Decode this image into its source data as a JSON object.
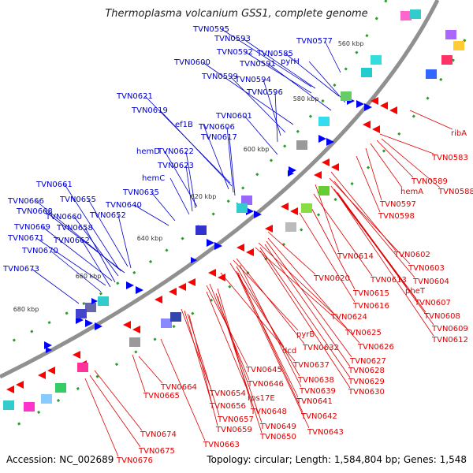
{
  "title": "Thermoplasma volcanium GSS1, complete genome",
  "accession": "Accession: NC_002689",
  "summary": "Topology: circular; Length: 1,584,804 bp; Genes: 1,548",
  "colors": {
    "forward_label": "#0000cc",
    "reverse_label": "#dd0000",
    "forward_arrow": "#0000ff",
    "reverse_arrow": "#ff0000",
    "backbone": "#888888",
    "tick": "#2a9d2a"
  },
  "scale_labels": [
    "560 kbp",
    "580 kbp",
    "600 kbp",
    "620 kbp",
    "640 kbp",
    "660 kbp",
    "680 kbp"
  ],
  "forward_genes": [
    "TVN0595",
    "TVN0593",
    "TVN0577",
    "TVN0592",
    "TVN0585",
    "pyrH",
    "TVN0591",
    "TVN0600",
    "TVN0599",
    "TVN0594",
    "TVN0596",
    "TVN0621",
    "TVN0619",
    "TVN0601",
    "ef1B",
    "TVN0606",
    "TVN0617",
    "hemD",
    "TVN0622",
    "TVN0623",
    "hemC",
    "TVN0635",
    "TVN0640",
    "TVN0661",
    "TVN0666",
    "TVN0655",
    "TVN0668",
    "TVN0660",
    "TVN0652",
    "TVN0669",
    "TVN0658",
    "TVN0671",
    "TVN0662",
    "TVN0670",
    "TVN0673"
  ],
  "reverse_genes": [
    "ribA",
    "TVN0583",
    "TVN0589",
    "hemA",
    "TVN0588",
    "TVN0597",
    "TVN0598",
    "TVN0602",
    "TVN0614",
    "TVN0603",
    "TVN0620",
    "TVN0613",
    "TVN0604",
    "TVN0615",
    "pheT",
    "TVN0616",
    "TVN0607",
    "TVN0608",
    "TVN0624",
    "TVN0609",
    "TVN0625",
    "TVN0612",
    "pyrB",
    "dcd",
    "TVN0632",
    "TVN0626",
    "TVN0627",
    "TVN0637",
    "TVN0628",
    "TVN0645",
    "TVN0638",
    "TVN0629",
    "TVN0646",
    "TVN0639",
    "TVN0630",
    "TVN0664",
    "TVN0654",
    "rps17E",
    "TVN0641",
    "TVN0665",
    "TVN0656",
    "TVN0648",
    "TVN0642",
    "TVN0657",
    "TVN0649",
    "TVN0659",
    "TVN0643",
    "TVN0650",
    "TVN0674",
    "TVN0663",
    "TVN0675",
    "TVN0676"
  ]
}
